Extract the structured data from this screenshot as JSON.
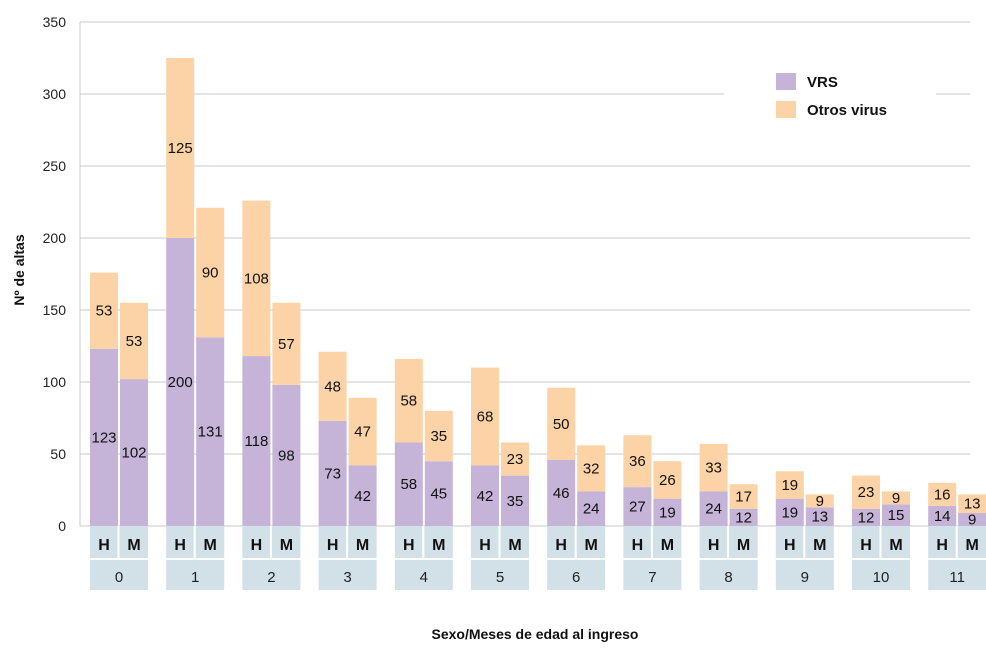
{
  "chart_data": {
    "type": "bar",
    "stacked": true,
    "ylabel": "Nº de altas",
    "xlabel": "Sexo/Meses de edad al ingreso",
    "ylim": [
      0,
      350
    ],
    "yticks": [
      0,
      50,
      100,
      150,
      200,
      250,
      300,
      350
    ],
    "grid": true,
    "legend_position": "top-right",
    "groups": [
      "0",
      "1",
      "2",
      "3",
      "4",
      "5",
      "6",
      "7",
      "8",
      "9",
      "10",
      "11"
    ],
    "sexes": [
      "H",
      "M"
    ],
    "series": [
      {
        "name": "VRS",
        "color": "#c5b3d8",
        "values": [
          [
            123,
            102
          ],
          [
            200,
            131
          ],
          [
            118,
            98
          ],
          [
            73,
            42
          ],
          [
            58,
            45
          ],
          [
            42,
            35
          ],
          [
            46,
            24
          ],
          [
            27,
            19
          ],
          [
            24,
            12
          ],
          [
            19,
            13
          ],
          [
            12,
            15
          ],
          [
            14,
            9
          ]
        ]
      },
      {
        "name": "Otros virus",
        "color": "#fbd3a6",
        "values": [
          [
            53,
            53
          ],
          [
            125,
            90
          ],
          [
            108,
            57
          ],
          [
            48,
            47
          ],
          [
            58,
            35
          ],
          [
            68,
            23
          ],
          [
            50,
            32
          ],
          [
            36,
            26
          ],
          [
            33,
            17
          ],
          [
            19,
            9
          ],
          [
            23,
            9
          ],
          [
            16,
            13
          ]
        ]
      }
    ],
    "colors": {
      "grid": "#c8c8c8",
      "axis_box": "#d2e0e8"
    }
  }
}
